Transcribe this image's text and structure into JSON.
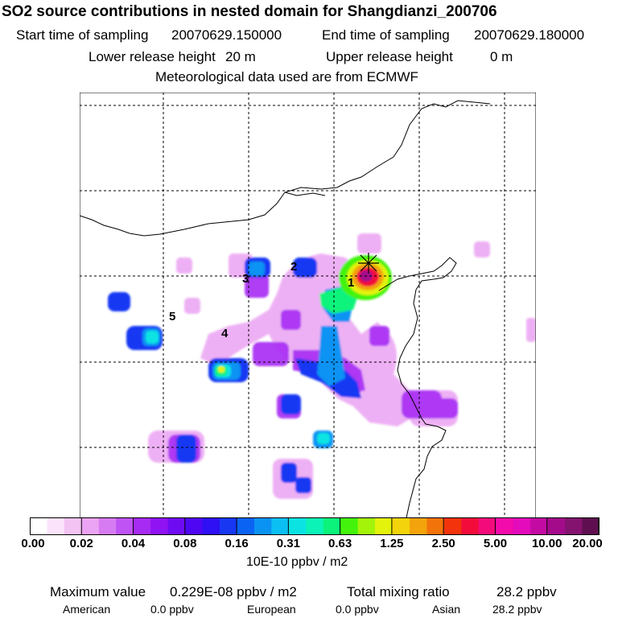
{
  "title": "SO2 source contributions in nested domain for Shangdianzi_200706",
  "sampling": {
    "start_label": "Start time of sampling",
    "start_value": "20070629.150000",
    "end_label": "End time of sampling",
    "end_value": "20070629.180000"
  },
  "release": {
    "lower_label": "Lower release height",
    "lower_value": "20 m",
    "upper_label": "Upper release height",
    "upper_value": "0 m"
  },
  "met_line": "Meteorological data used are from ECMWF",
  "map": {
    "region_labels": [
      "1",
      "2",
      "3",
      "4",
      "5"
    ],
    "receptor_marker": "cross-marker"
  },
  "colorbar": {
    "colors": [
      "#ffffff",
      "#fbe3fb",
      "#f3c3f3",
      "#eba3f3",
      "#d77bf3",
      "#bf53f3",
      "#a72bf3",
      "#8f13f3",
      "#6f0bf3",
      "#4f07f3",
      "#2f0ff3",
      "#1737f3",
      "#0b63f3",
      "#0b93f3",
      "#0bbff3",
      "#0be3e3",
      "#0bf3b7",
      "#0bf37b",
      "#43f30b",
      "#a3f30b",
      "#e3f30b",
      "#f3d30b",
      "#f3a30b",
      "#f3730b",
      "#f3330b",
      "#f30b3b",
      "#f30b7b",
      "#f30bab",
      "#e30bbb",
      "#c30ba3",
      "#a30b8b",
      "#83136f",
      "#5f0f4f"
    ],
    "tick_labels": [
      "0.00",
      "0.02",
      "0.04",
      "0.08",
      "0.16",
      "0.31",
      "0.63",
      "1.25",
      "2.50",
      "5.00",
      "10.00",
      "20.00"
    ],
    "unit": "10E-10 ppbv / m2"
  },
  "summary": {
    "max_label": "Maximum value",
    "max_value": "0.229E-08 ppbv / m2",
    "total_label": "Total mixing ratio",
    "total_value": "28.2 ppbv",
    "american_label": "American",
    "american_value": "0.0 ppbv",
    "european_label": "European",
    "european_value": "0.0 ppbv",
    "asian_label": "Asian",
    "asian_value": "28.2 ppbv"
  }
}
